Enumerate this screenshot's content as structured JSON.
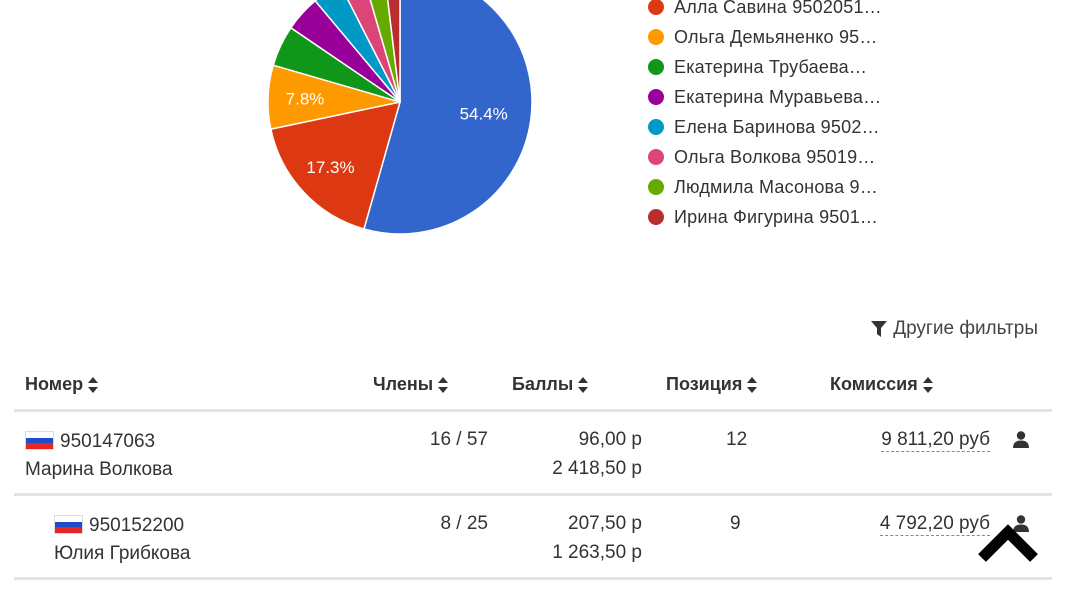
{
  "chart_data": {
    "type": "pie",
    "slices": [
      {
        "name": "",
        "value": 54.4,
        "color": "#3366cc",
        "label": "54.4%"
      },
      {
        "name": "Алла Савина 9502051…",
        "value": 17.3,
        "color": "#dc3912",
        "label": "17.3%"
      },
      {
        "name": "Ольга Демьяненко 95…",
        "value": 7.8,
        "color": "#ff9900",
        "label": "7.8%"
      },
      {
        "name": "Екатерина Трубаева…",
        "value": 5.0,
        "color": "#109618",
        "label": ""
      },
      {
        "name": "Екатерина Муравьева…",
        "value": 4.4,
        "color": "#990099",
        "label": ""
      },
      {
        "name": "Елена Баринова 9502…",
        "value": 3.6,
        "color": "#0099c6",
        "label": ""
      },
      {
        "name": "Ольга Волкова 95019…",
        "value": 3.0,
        "color": "#dd4477",
        "label": ""
      },
      {
        "name": "Людмила Масонова 9…",
        "value": 2.6,
        "color": "#66aa00",
        "label": ""
      },
      {
        "name": "Ирина Фигурина 9501…",
        "value": 1.9,
        "color": "#b82e2e",
        "label": ""
      }
    ]
  },
  "legend": [
    {
      "label": "Алла Савина 9502051…",
      "color": "#dc3912"
    },
    {
      "label": "Ольга Демьяненко 95…",
      "color": "#ff9900"
    },
    {
      "label": "Екатерина Трубаева…",
      "color": "#109618"
    },
    {
      "label": "Екатерина Муравьева…",
      "color": "#990099"
    },
    {
      "label": "Елена Баринова 9502…",
      "color": "#0099c6"
    },
    {
      "label": "Ольга Волкова 95019…",
      "color": "#dd4477"
    },
    {
      "label": "Людмила Масонова 9…",
      "color": "#66aa00"
    },
    {
      "label": "Ирина Фигурина 9501…",
      "color": "#b82e2e"
    }
  ],
  "filters": {
    "label": "Другие фильтры",
    "icon": "filter-icon"
  },
  "table": {
    "headers": {
      "nomer": "Номер",
      "chleny": "Члены",
      "bally": "Баллы",
      "pozitsiya": "Позиция",
      "komissiya": "Комиссия"
    },
    "rows": [
      {
        "number": "950147063",
        "name": "Марина Волкова",
        "members": "16 / 57",
        "points": "96,00 р",
        "points_total": "2 418,50 р",
        "position": "12",
        "commission": "9 811,20 руб"
      },
      {
        "number": "950152200",
        "name": "Юлия Грибкова",
        "members": "8 / 25",
        "points": "207,50 р",
        "points_total": "1 263,50 р",
        "position": "9",
        "commission": "4 792,20 руб"
      }
    ]
  },
  "icons": {
    "sort": "sort-icon",
    "user": "user-icon",
    "scroll_top": "chevron-up-icon",
    "flag": "russia-flag-icon"
  }
}
